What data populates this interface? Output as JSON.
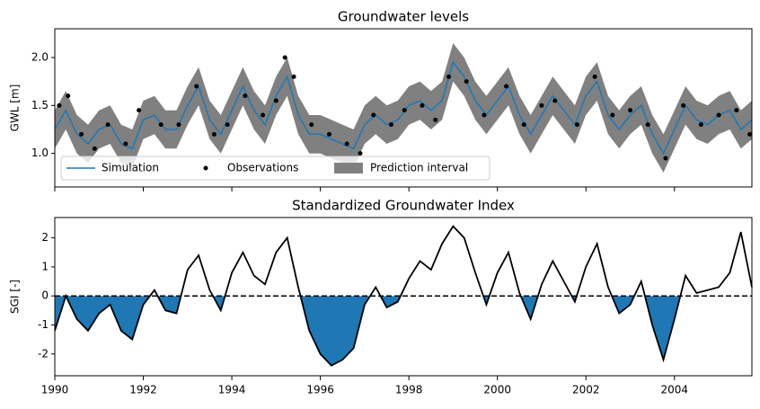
{
  "chart_data": [
    {
      "type": "line",
      "title": "Groundwater levels",
      "ylabel": "GWL [m]",
      "x": [
        1990,
        1990.25,
        1990.5,
        1990.75,
        1991,
        1991.25,
        1991.5,
        1991.75,
        1992,
        1992.25,
        1992.5,
        1992.75,
        1993,
        1993.25,
        1993.5,
        1993.75,
        1994,
        1994.25,
        1994.5,
        1994.75,
        1995,
        1995.25,
        1995.5,
        1995.75,
        1996,
        1996.25,
        1996.5,
        1996.75,
        1997,
        1997.25,
        1997.5,
        1997.75,
        1998,
        1998.25,
        1998.5,
        1998.75,
        1999,
        1999.25,
        1999.5,
        1999.75,
        2000,
        2000.25,
        2000.5,
        2000.75,
        2001,
        2001.25,
        2001.5,
        2001.75,
        2002,
        2002.25,
        2002.5,
        2002.75,
        2003,
        2003.25,
        2003.5,
        2003.75,
        2004,
        2004.25,
        2004.5,
        2004.75,
        2005,
        2005.25,
        2005.5,
        2005.75
      ],
      "xlim": [
        1990,
        2005.75
      ],
      "ylim": [
        0.65,
        2.3
      ],
      "yticks": [
        {
          "value": 1.0,
          "label": "1.0"
        },
        {
          "value": 1.5,
          "label": "1.5"
        },
        {
          "value": 2.0,
          "label": "2.0"
        }
      ],
      "legend": "lower left",
      "series": [
        {
          "name": "Simulation",
          "color": "#1f77b4",
          "values": [
            1.25,
            1.45,
            1.2,
            1.1,
            1.25,
            1.3,
            1.1,
            1.05,
            1.35,
            1.4,
            1.25,
            1.25,
            1.5,
            1.7,
            1.35,
            1.2,
            1.45,
            1.7,
            1.45,
            1.3,
            1.6,
            1.8,
            1.4,
            1.2,
            1.2,
            1.15,
            1.1,
            1.05,
            1.3,
            1.4,
            1.3,
            1.35,
            1.5,
            1.55,
            1.45,
            1.55,
            1.95,
            1.8,
            1.55,
            1.4,
            1.55,
            1.7,
            1.4,
            1.2,
            1.4,
            1.6,
            1.45,
            1.3,
            1.6,
            1.75,
            1.4,
            1.25,
            1.4,
            1.5,
            1.2,
            1.0,
            1.25,
            1.5,
            1.35,
            1.3,
            1.4,
            1.45,
            1.25,
            1.35
          ]
        },
        {
          "name": "Observations",
          "color": "#000000",
          "x": [
            1990.1,
            1990.3,
            1990.6,
            1990.9,
            1991.2,
            1991.6,
            1991.9,
            1992.4,
            1992.8,
            1993.2,
            1993.6,
            1993.9,
            1994.3,
            1994.7,
            1995.0,
            1995.2,
            1995.4,
            1995.8,
            1996.2,
            1996.6,
            1996.9,
            1997.2,
            1997.6,
            1997.9,
            1998.3,
            1998.6,
            1998.9,
            1999.3,
            1999.7,
            2000.2,
            2000.6,
            2001.0,
            2001.3,
            2001.8,
            2002.2,
            2002.6,
            2003.0,
            2003.4,
            2003.8,
            2004.2,
            2004.6,
            2005.0,
            2005.4,
            2005.7
          ],
          "values": [
            1.5,
            1.6,
            1.2,
            1.05,
            1.3,
            1.1,
            1.45,
            1.3,
            1.3,
            1.7,
            1.2,
            1.3,
            1.6,
            1.4,
            1.55,
            2.0,
            1.8,
            1.3,
            1.2,
            1.1,
            1.0,
            1.4,
            1.3,
            1.45,
            1.5,
            1.35,
            1.8,
            1.75,
            1.4,
            1.7,
            1.3,
            1.5,
            1.55,
            1.3,
            1.8,
            1.4,
            1.45,
            1.3,
            0.95,
            1.5,
            1.3,
            1.4,
            1.45,
            1.2
          ]
        },
        {
          "name": "Prediction interval",
          "color": "#808080",
          "upper": [
            1.45,
            1.65,
            1.4,
            1.3,
            1.45,
            1.5,
            1.3,
            1.25,
            1.55,
            1.6,
            1.45,
            1.45,
            1.7,
            1.9,
            1.55,
            1.4,
            1.65,
            1.9,
            1.65,
            1.5,
            1.8,
            2.0,
            1.6,
            1.4,
            1.4,
            1.35,
            1.3,
            1.25,
            1.5,
            1.6,
            1.5,
            1.55,
            1.7,
            1.75,
            1.65,
            1.75,
            2.15,
            2.0,
            1.75,
            1.6,
            1.75,
            1.9,
            1.6,
            1.4,
            1.6,
            1.8,
            1.65,
            1.5,
            1.8,
            1.95,
            1.6,
            1.45,
            1.6,
            1.7,
            1.4,
            1.2,
            1.45,
            1.7,
            1.55,
            1.5,
            1.6,
            1.65,
            1.45,
            1.55
          ],
          "lower": [
            1.05,
            1.25,
            1.0,
            0.9,
            1.05,
            1.1,
            0.9,
            0.85,
            1.15,
            1.2,
            1.05,
            1.05,
            1.3,
            1.5,
            1.15,
            1.0,
            1.25,
            1.5,
            1.25,
            1.1,
            1.4,
            1.6,
            1.2,
            1.0,
            1.0,
            0.95,
            0.9,
            0.85,
            1.1,
            1.2,
            1.1,
            1.15,
            1.3,
            1.35,
            1.25,
            1.35,
            1.75,
            1.6,
            1.35,
            1.2,
            1.35,
            1.5,
            1.2,
            1.0,
            1.2,
            1.4,
            1.25,
            1.1,
            1.4,
            1.55,
            1.2,
            1.05,
            1.2,
            1.3,
            1.0,
            0.8,
            1.05,
            1.3,
            1.15,
            1.1,
            1.2,
            1.25,
            1.05,
            1.15
          ]
        }
      ]
    },
    {
      "type": "area",
      "title": "Standardized Groundwater Index",
      "ylabel": "SGI [-]",
      "x": [
        1990,
        1990.25,
        1990.5,
        1990.75,
        1991,
        1991.25,
        1991.5,
        1991.75,
        1992,
        1992.25,
        1992.5,
        1992.75,
        1993,
        1993.25,
        1993.5,
        1993.75,
        1994,
        1994.25,
        1994.5,
        1994.75,
        1995,
        1995.25,
        1995.5,
        1995.75,
        1996,
        1996.25,
        1996.5,
        1996.75,
        1997,
        1997.25,
        1997.5,
        1997.75,
        1998,
        1998.25,
        1998.5,
        1998.75,
        1999,
        1999.25,
        1999.5,
        1999.75,
        2000,
        2000.25,
        2000.5,
        2000.75,
        2001,
        2001.25,
        2001.5,
        2001.75,
        2002,
        2002.25,
        2002.5,
        2002.75,
        2003,
        2003.25,
        2003.5,
        2003.75,
        2004,
        2004.25,
        2004.5,
        2004.75,
        2005,
        2005.25,
        2005.5,
        2005.75
      ],
      "values": [
        -1.2,
        0.0,
        -0.8,
        -1.2,
        -0.6,
        -0.3,
        -1.2,
        -1.5,
        -0.3,
        0.2,
        -0.5,
        -0.6,
        0.9,
        1.4,
        0.2,
        -0.5,
        0.8,
        1.5,
        0.7,
        0.4,
        1.5,
        2.0,
        0.3,
        -1.2,
        -2.0,
        -2.4,
        -2.2,
        -1.8,
        -0.3,
        0.3,
        -0.4,
        -0.2,
        0.6,
        1.2,
        0.9,
        1.8,
        2.4,
        2.0,
        0.8,
        -0.3,
        0.8,
        1.5,
        0.1,
        -0.8,
        0.4,
        1.2,
        0.5,
        -0.2,
        1.0,
        1.8,
        0.3,
        -0.6,
        -0.3,
        0.5,
        -1.0,
        -2.2,
        -0.8,
        0.7,
        0.1,
        0.2,
        0.3,
        0.8,
        2.2,
        0.3
      ],
      "color": "#000000",
      "fill_color": "#1f77b4",
      "xlim": [
        1990,
        2005.75
      ],
      "ylim": [
        -2.75,
        2.7
      ],
      "yticks": [
        -2,
        -1,
        0,
        1,
        2
      ],
      "xticks": [
        1990,
        1992,
        1994,
        1996,
        1998,
        2000,
        2002,
        2004
      ]
    }
  ]
}
